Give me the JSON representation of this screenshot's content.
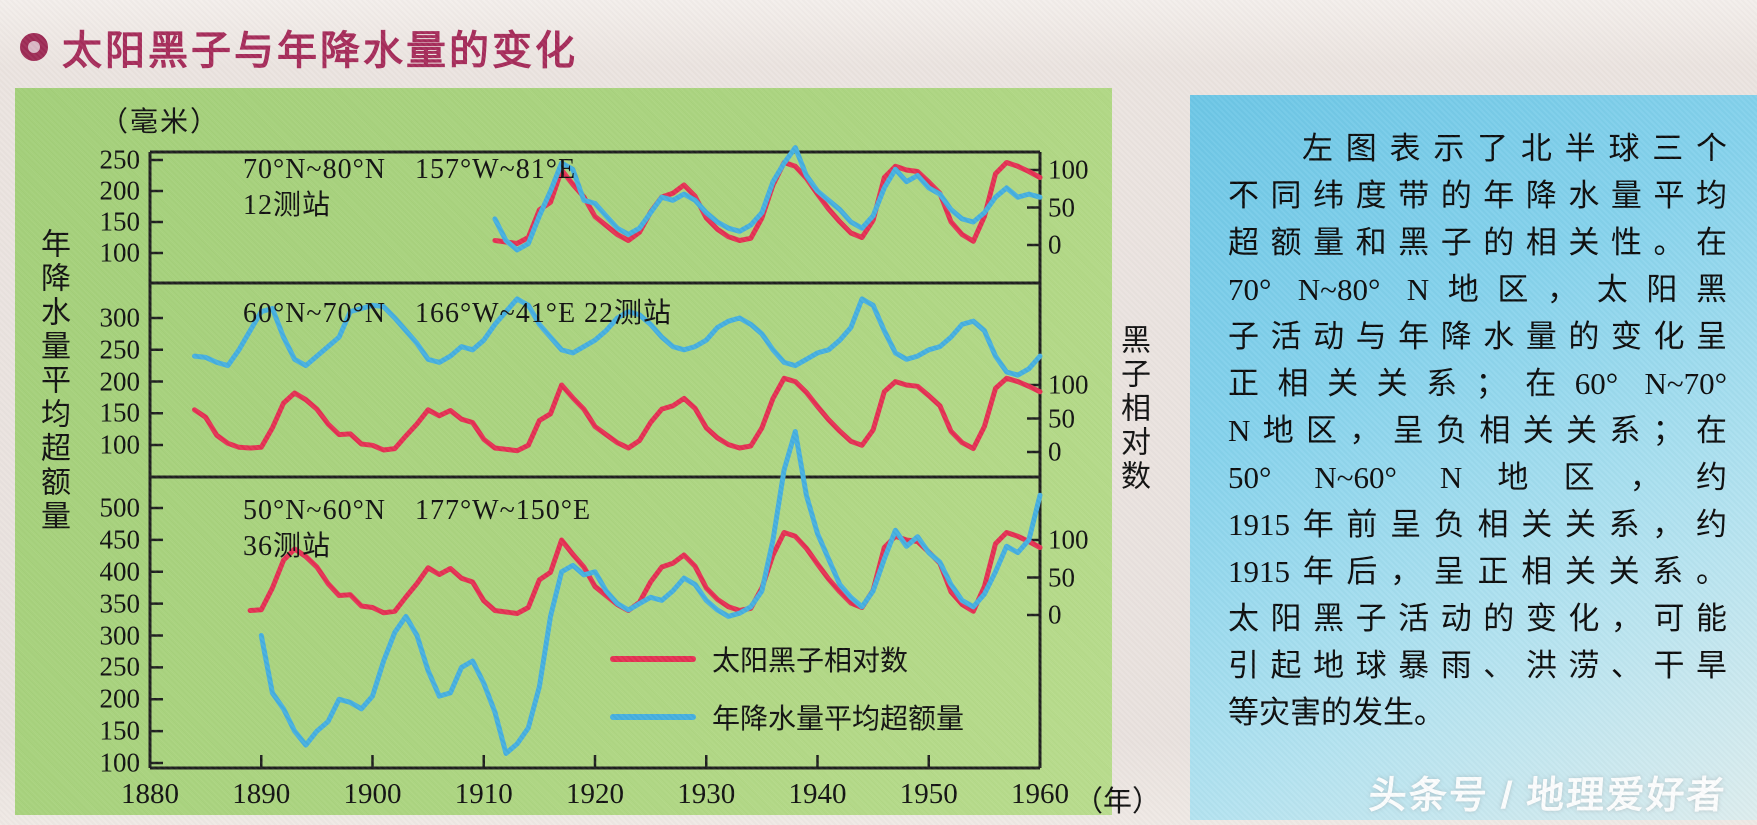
{
  "page": {
    "title": "太阳黑子与年降水量的变化",
    "watermark": "头条号 / 地理爱好者"
  },
  "chart": {
    "unit_label": "（毫米）",
    "left_axis_title": "年降水量平均超额量",
    "right_axis_title": "黑子相对数",
    "x_axis": {
      "ticks": [
        1880,
        1890,
        1900,
        1910,
        1920,
        1930,
        1940,
        1950,
        1960
      ],
      "suffix": "（年）"
    },
    "legend": [
      {
        "name": "太阳黑子相对数",
        "color": "#e43052"
      },
      {
        "name": "年降水量平均超额量",
        "color": "#45afdf"
      }
    ]
  },
  "chart_data": [
    {
      "type": "line",
      "title": "70°N~80°N　157°W~81°E",
      "subtitle": "12测站",
      "left_axis": {
        "label": "年降水量平均超额量（毫米）",
        "ticks": [
          250,
          200,
          150,
          100
        ]
      },
      "right_axis": {
        "label": "黑子相对数",
        "ticks": [
          100,
          50,
          0
        ]
      },
      "x_range": [
        1880,
        1960
      ],
      "series": [
        {
          "name": "太阳黑子相对数",
          "axis": "right",
          "color": "#e43052",
          "start_year": 1911,
          "values": [
            6,
            4,
            2,
            10,
            47,
            57,
            100,
            81,
            64,
            38,
            26,
            14,
            6,
            17,
            44,
            64,
            69,
            80,
            65,
            36,
            21,
            11,
            6,
            9,
            36,
            80,
            110,
            105,
            89,
            68,
            48,
            31,
            16,
            10,
            33,
            90,
            105,
            100,
            98,
            84,
            69,
            31,
            14,
            5,
            38,
            95,
            110,
            105,
            98,
            90
          ]
        },
        {
          "name": "年降水量平均超额量",
          "axis": "left",
          "color": "#45afdf",
          "start_year": 1911,
          "values": [
            155,
            120,
            105,
            115,
            160,
            200,
            245,
            235,
            185,
            180,
            160,
            140,
            130,
            140,
            165,
            190,
            185,
            195,
            185,
            165,
            150,
            140,
            135,
            145,
            165,
            215,
            245,
            270,
            225,
            200,
            185,
            170,
            150,
            140,
            160,
            205,
            235,
            215,
            225,
            205,
            195,
            170,
            155,
            150,
            165,
            190,
            205,
            190,
            195,
            190
          ]
        }
      ]
    },
    {
      "type": "line",
      "title": "60°N~70°N　166°W~41°E 22测站",
      "subtitle": "",
      "left_axis": {
        "label": "年降水量平均超额量（毫米）",
        "ticks": [
          300,
          250,
          200,
          150,
          100
        ]
      },
      "right_axis": {
        "label": "黑子相对数",
        "ticks": [
          100,
          50,
          0
        ]
      },
      "x_range": [
        1880,
        1960
      ],
      "series": [
        {
          "name": "太阳黑子相对数",
          "axis": "right",
          "color": "#e43052",
          "start_year": 1884,
          "values": [
            63,
            52,
            25,
            13,
            7,
            6,
            7,
            36,
            73,
            88,
            78,
            64,
            42,
            26,
            27,
            12,
            10,
            3,
            5,
            24,
            42,
            63,
            54,
            62,
            49,
            44,
            19,
            6,
            4,
            2,
            10,
            47,
            57,
            100,
            81,
            64,
            38,
            26,
            14,
            6,
            17,
            44,
            64,
            69,
            80,
            65,
            36,
            21,
            11,
            6,
            9,
            36,
            80,
            110,
            105,
            89,
            68,
            48,
            31,
            16,
            10,
            33,
            90,
            105,
            100,
            98,
            84,
            69,
            31,
            14,
            5,
            38,
            95,
            110,
            105,
            98,
            90
          ]
        },
        {
          "name": "年降水量平均超额量",
          "axis": "left",
          "color": "#45afdf",
          "start_year": 1884,
          "values": [
            240,
            238,
            230,
            225,
            250,
            280,
            310,
            315,
            270,
            235,
            225,
            240,
            255,
            270,
            310,
            315,
            320,
            318,
            300,
            280,
            260,
            235,
            230,
            240,
            255,
            250,
            265,
            290,
            310,
            330,
            320,
            290,
            270,
            250,
            245,
            255,
            265,
            280,
            300,
            310,
            305,
            290,
            270,
            255,
            250,
            255,
            265,
            285,
            295,
            300,
            290,
            275,
            250,
            230,
            225,
            235,
            245,
            250,
            265,
            285,
            330,
            320,
            280,
            245,
            235,
            240,
            250,
            255,
            270,
            290,
            295,
            280,
            240,
            215,
            210,
            220,
            240
          ]
        }
      ]
    },
    {
      "type": "line",
      "title": "50°N~60°N　177°W~150°E",
      "subtitle": "36测站",
      "left_axis": {
        "label": "年降水量平均超额量（毫米）",
        "ticks": [
          500,
          450,
          400,
          350,
          300,
          250,
          200,
          150,
          100
        ]
      },
      "right_axis": {
        "label": "黑子相对数",
        "ticks": [
          100,
          50,
          0
        ]
      },
      "x_range": [
        1880,
        1960
      ],
      "series": [
        {
          "name": "太阳黑子相对数",
          "axis": "right",
          "color": "#e43052",
          "start_year": 1889,
          "values": [
            6,
            7,
            36,
            73,
            88,
            78,
            64,
            42,
            26,
            27,
            12,
            10,
            3,
            5,
            24,
            42,
            63,
            54,
            62,
            49,
            44,
            19,
            6,
            4,
            2,
            10,
            47,
            57,
            100,
            81,
            64,
            38,
            26,
            14,
            6,
            17,
            44,
            64,
            69,
            80,
            65,
            36,
            21,
            11,
            6,
            9,
            36,
            80,
            110,
            105,
            89,
            68,
            48,
            31,
            16,
            10,
            33,
            90,
            105,
            100,
            98,
            84,
            69,
            31,
            14,
            5,
            38,
            95,
            110,
            105,
            98,
            90
          ]
        },
        {
          "name": "年降水量平均超额量",
          "axis": "left",
          "color": "#45afdf",
          "start_year": 1890,
          "values": [
            300,
            210,
            185,
            150,
            128,
            150,
            165,
            200,
            195,
            185,
            205,
            260,
            305,
            330,
            300,
            245,
            205,
            210,
            250,
            260,
            225,
            180,
            115,
            130,
            155,
            220,
            330,
            400,
            410,
            395,
            400,
            370,
            350,
            340,
            350,
            360,
            355,
            370,
            390,
            380,
            355,
            340,
            330,
            335,
            345,
            370,
            450,
            560,
            620,
            520,
            460,
            420,
            380,
            360,
            345,
            370,
            420,
            465,
            440,
            455,
            430,
            415,
            380,
            355,
            345,
            365,
            400,
            440,
            430,
            450,
            520
          ]
        }
      ]
    }
  ],
  "info_panel": {
    "lines": [
      "左图表示了北半球三个",
      "不同纬度带的年降水量平均",
      "超额量和黑子的相关性。在",
      "70° N~80° N地区，太阳黑",
      "子活动与年降水量的变化呈",
      "正相关关系；在60° N~70°",
      "N地区，呈负相关关系；在",
      "50° N~60° N地区，约",
      "1915年前呈负相关关系，约",
      "1915年后，呈正相关关系。",
      "太阳黑子活动的变化，可能",
      "引起地球暴雨、洪涝、干旱",
      "等灾害的发生。"
    ]
  }
}
